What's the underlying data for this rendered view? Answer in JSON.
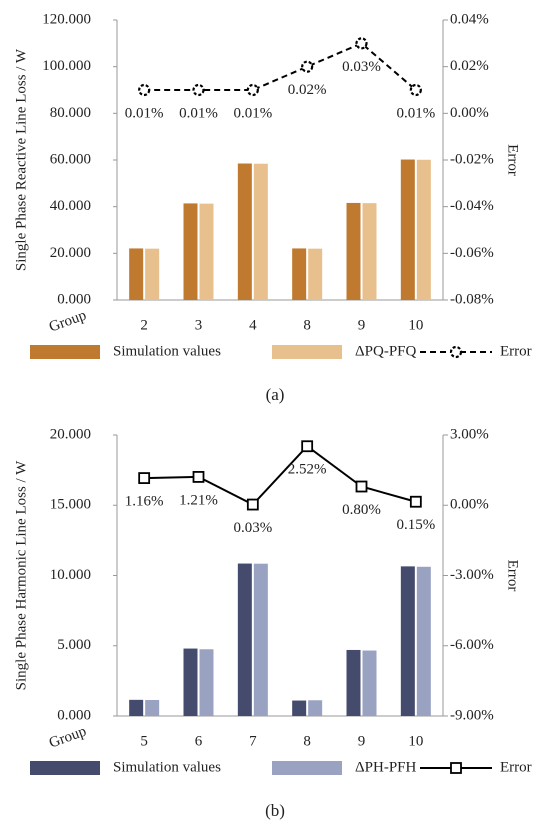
{
  "chart_data": [
    {
      "type": "combo",
      "caption": "(a)",
      "y_label": "Single Phase Reactive Line Loss / W",
      "y2_label": "Error",
      "x_label": "Group",
      "categories": [
        "2",
        "3",
        "4",
        "8",
        "9",
        "10"
      ],
      "series": [
        {
          "name": "Simulation values",
          "type": "bar",
          "color": "#c07a30",
          "values": [
            22.1,
            41.4,
            58.5,
            22.1,
            41.6,
            60.2
          ]
        },
        {
          "name": "ΔPQ-PFQ",
          "type": "bar",
          "color": "#e8c08e",
          "values": [
            22.0,
            41.3,
            58.4,
            22.0,
            41.5,
            60.1
          ]
        },
        {
          "name": "Error",
          "type": "line",
          "axis": "y2",
          "color": "#000000",
          "line_style": "dashed",
          "marker": "circle",
          "values": [
            0.01,
            0.01,
            0.01,
            0.02,
            0.03,
            0.01
          ],
          "value_labels": [
            "0.01%",
            "0.01%",
            "0.01%",
            "0.02%",
            "0.03%",
            "0.01%"
          ]
        }
      ],
      "ylim": [
        0,
        120
      ],
      "yticks": [
        {
          "value": 0,
          "label": "0.000"
        },
        {
          "value": 20,
          "label": "20.000"
        },
        {
          "value": 40,
          "label": "40.000"
        },
        {
          "value": 60,
          "label": "60.000"
        },
        {
          "value": 80,
          "label": "80.000"
        },
        {
          "value": 100,
          "label": "100.000"
        },
        {
          "value": 120,
          "label": "120.000"
        }
      ],
      "y2lim": [
        -0.08,
        0.04
      ],
      "y2ticks": [
        {
          "value": -0.08,
          "label": "-0.08%"
        },
        {
          "value": -0.06,
          "label": "-0.06%"
        },
        {
          "value": -0.04,
          "label": "-0.04%"
        },
        {
          "value": -0.02,
          "label": "-0.02%"
        },
        {
          "value": 0,
          "label": "0.00%"
        },
        {
          "value": 0.02,
          "label": "0.02%"
        },
        {
          "value": 0.04,
          "label": "0.04%"
        }
      ]
    },
    {
      "type": "combo",
      "caption": "(b)",
      "y_label": "Single Phase Harmonic Line Loss / W",
      "y2_label": "Error",
      "x_label": "Group",
      "categories": [
        "5",
        "6",
        "7",
        "8",
        "9",
        "10"
      ],
      "series": [
        {
          "name": "Simulation values",
          "type": "bar",
          "color": "#454b6c",
          "values": [
            1.15,
            4.8,
            10.85,
            1.1,
            4.7,
            10.65
          ]
        },
        {
          "name": "ΔPH-PFH",
          "type": "bar",
          "color": "#9aa2c2",
          "values": [
            1.14,
            4.75,
            10.84,
            1.12,
            4.66,
            10.62
          ]
        },
        {
          "name": "Error",
          "type": "line",
          "axis": "y2",
          "color": "#000000",
          "line_style": "solid",
          "marker": "square",
          "values": [
            1.16,
            1.21,
            0.03,
            2.52,
            0.8,
            0.15
          ],
          "value_labels": [
            "1.16%",
            "1.21%",
            "0.03%",
            "2.52%",
            "0.80%",
            "0.15%"
          ]
        }
      ],
      "ylim": [
        0,
        20
      ],
      "yticks": [
        {
          "value": 0,
          "label": "0.000"
        },
        {
          "value": 5,
          "label": "5.000"
        },
        {
          "value": 10,
          "label": "10.000"
        },
        {
          "value": 15,
          "label": "15.000"
        },
        {
          "value": 20,
          "label": "20.000"
        }
      ],
      "y2lim": [
        -9,
        3
      ],
      "y2ticks": [
        {
          "value": -9,
          "label": "-9.00%"
        },
        {
          "value": -6,
          "label": "-6.00%"
        },
        {
          "value": -3,
          "label": "-3.00%"
        },
        {
          "value": 0,
          "label": "0.00%"
        },
        {
          "value": 3,
          "label": "3.00%"
        }
      ]
    }
  ]
}
